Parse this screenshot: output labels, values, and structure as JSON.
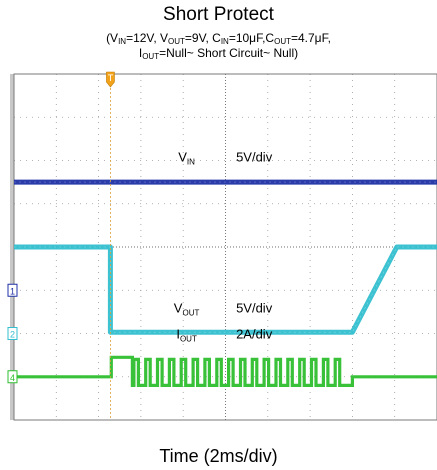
{
  "header": {
    "title": "Short Protect",
    "cond_line1": "(V<sub>IN</sub>=12V, V<sub>OUT</sub>=9V, C<sub>IN</sub>=10μF,C<sub>OUT</sub>=4.7μF,",
    "cond_line2": "I<sub>OUT</sub>=Null~ Short Circuit~ Null)"
  },
  "xlabel": "Time (2ms/div)",
  "chart_data": {
    "type": "line",
    "title": "Short Protect",
    "subtitle": "(VIN=12V, VOUT=9V, CIN=10μF,COUT=4.7μF, IOUT=Null~ Short Circuit~ Null)",
    "xlabel": "Time (2ms/div)",
    "x_unit": "div",
    "xlim": [
      0,
      10
    ],
    "ylim_div": [
      0,
      8
    ],
    "grid": true,
    "trigger_marker": "T",
    "channels": [
      {
        "id": "1",
        "name": "VIN",
        "name_main": "V",
        "name_sub": "IN",
        "scale": "5V/div",
        "color": "#1f31a5",
        "ground_div": 3.0,
        "level_div": 2.5,
        "points": [
          [
            0,
            5.5
          ],
          [
            10,
            5.5
          ]
        ]
      },
      {
        "id": "2",
        "name": "VOUT",
        "name_main": "V",
        "name_sub": "OUT",
        "scale": "5V/div",
        "color": "#33bfcf",
        "ground_div": 2.0,
        "points": [
          [
            0,
            4.0
          ],
          [
            2.28,
            4.0
          ],
          [
            2.28,
            2.03
          ],
          [
            8.0,
            2.03
          ],
          [
            9.05,
            4.0
          ],
          [
            10,
            4.0
          ]
        ]
      },
      {
        "id": "4",
        "name": "IOUT",
        "name_main": "I",
        "name_sub": "OUT",
        "scale": "2A/div",
        "color": "#2ebf2e",
        "ground_div": 1.0,
        "baseline_div": 1.0,
        "short_start_div": 2.3,
        "short_end_div": 8.0,
        "first_step_end_div": 2.8,
        "peak_div": 1.45,
        "low_div": 0.8,
        "pulse_period_div": 0.28
      }
    ]
  }
}
